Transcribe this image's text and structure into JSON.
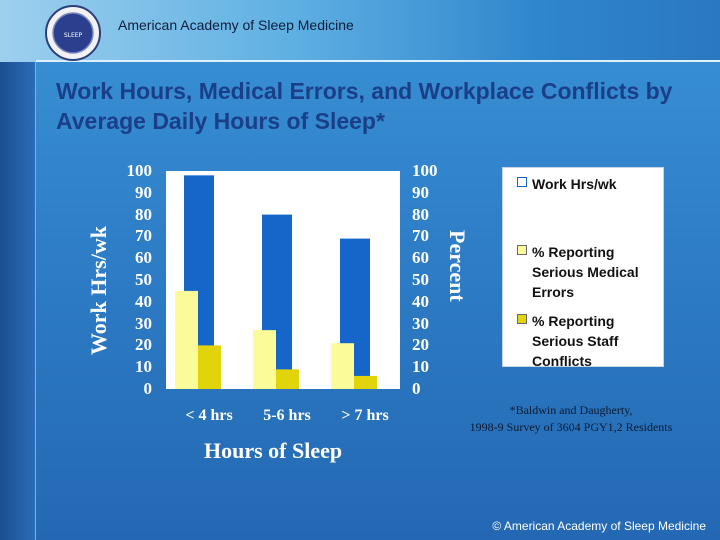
{
  "header": {
    "org_name": "American Academy of Sleep Medicine",
    "logo_text": "SLEEP"
  },
  "slide": {
    "title": "Work Hours, Medical Errors, and Workplace Conflicts by Average Daily Hours of Sleep*"
  },
  "chart_data": {
    "type": "bar",
    "categories": [
      "< 4 hrs",
      "5-6 hrs",
      "> 7 hrs"
    ],
    "series": [
      {
        "name": "Work Hrs/wk",
        "values": [
          98,
          80,
          69
        ],
        "color": "#1566c8",
        "axis": "left"
      },
      {
        "name": "% Reporting Serious Medical Errors",
        "values": [
          45,
          27,
          21
        ],
        "color": "#fbfb9a",
        "axis": "right"
      },
      {
        "name": "% Reporting Serious Staff Conflicts",
        "values": [
          20,
          9,
          6
        ],
        "color": "#e1d40a",
        "axis": "right"
      }
    ],
    "xlabel": "Hours of Sleep",
    "ylabel_left": "Work Hrs/wk",
    "ylabel_right": "Percent",
    "ylim": [
      0,
      100
    ],
    "yticks": [
      "100",
      "90",
      "80",
      "70",
      "60",
      "50",
      "40",
      "30",
      "20",
      "10",
      "0"
    ],
    "legend_labels": [
      "Work Hrs/wk",
      "% Reporting\nSerious Medical\nErrors",
      "% Reporting\nSerious Staff\nConflicts"
    ],
    "legend_position": "right",
    "grid": false
  },
  "citation": "*Baldwin and Daugherty,\n1998-9 Survey of 3604 PGY1,2 Residents",
  "footer": "© American Academy of Sleep Medicine"
}
